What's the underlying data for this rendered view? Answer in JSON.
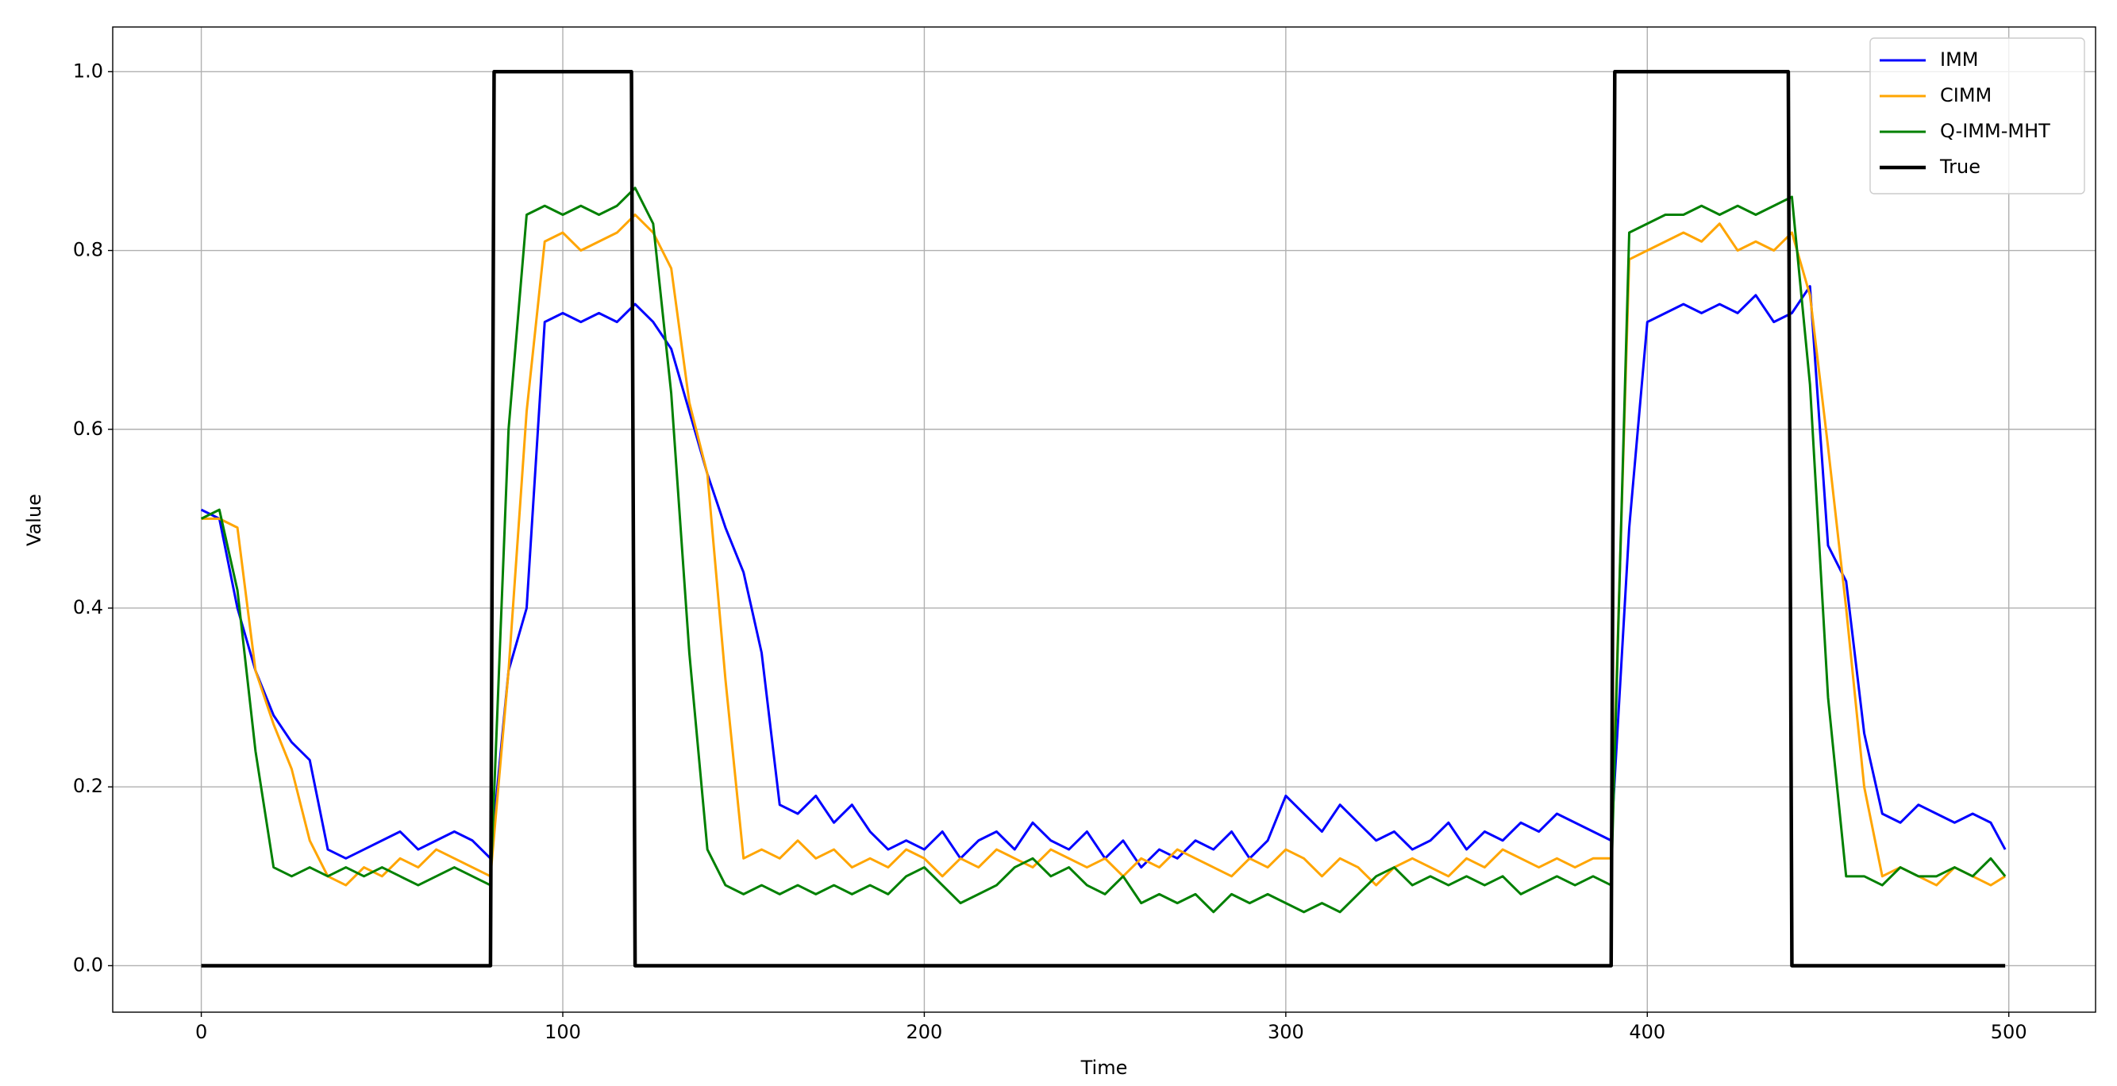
{
  "chart_data": {
    "type": "line",
    "xlabel": "Time",
    "ylabel": "Value",
    "xlim": [
      -24.5,
      524
    ],
    "ylim": [
      -0.052,
      1.05
    ],
    "xticks": [
      0,
      100,
      200,
      300,
      400,
      500
    ],
    "yticks": [
      {
        "value": 0,
        "label": "0.0"
      },
      {
        "value": 0.2,
        "label": "0.2"
      },
      {
        "value": 0.4,
        "label": "0.4"
      },
      {
        "value": 0.6,
        "label": "0.6"
      },
      {
        "value": 0.8,
        "label": "0.8"
      },
      {
        "value": 1,
        "label": "1.0"
      }
    ],
    "grid": true,
    "legend": "upper right",
    "x": [
      0,
      5,
      10,
      15,
      20,
      25,
      30,
      35,
      40,
      45,
      50,
      55,
      60,
      65,
      70,
      75,
      80,
      85,
      90,
      95,
      100,
      105,
      110,
      115,
      120,
      125,
      130,
      135,
      140,
      145,
      150,
      155,
      160,
      165,
      170,
      175,
      180,
      185,
      190,
      195,
      200,
      205,
      210,
      215,
      220,
      225,
      230,
      235,
      240,
      245,
      250,
      255,
      260,
      265,
      270,
      275,
      280,
      285,
      290,
      295,
      300,
      305,
      310,
      315,
      320,
      325,
      330,
      335,
      340,
      345,
      350,
      355,
      360,
      365,
      370,
      375,
      380,
      385,
      390,
      395,
      400,
      405,
      410,
      415,
      420,
      425,
      430,
      435,
      440,
      445,
      450,
      455,
      460,
      465,
      470,
      475,
      480,
      485,
      490,
      495,
      499
    ],
    "series": [
      {
        "name": "IMM",
        "color": "#0000ff",
        "values": [
          0.51,
          0.5,
          0.4,
          0.33,
          0.28,
          0.25,
          0.23,
          0.13,
          0.12,
          0.13,
          0.14,
          0.15,
          0.13,
          0.14,
          0.15,
          0.14,
          0.12,
          0.33,
          0.4,
          0.72,
          0.73,
          0.72,
          0.73,
          0.72,
          0.74,
          0.72,
          0.69,
          0.62,
          0.55,
          0.49,
          0.44,
          0.35,
          0.18,
          0.17,
          0.19,
          0.16,
          0.18,
          0.15,
          0.13,
          0.14,
          0.13,
          0.15,
          0.12,
          0.14,
          0.15,
          0.13,
          0.16,
          0.14,
          0.13,
          0.15,
          0.12,
          0.14,
          0.11,
          0.13,
          0.12,
          0.14,
          0.13,
          0.15,
          0.12,
          0.14,
          0.19,
          0.17,
          0.15,
          0.18,
          0.16,
          0.14,
          0.15,
          0.13,
          0.14,
          0.16,
          0.13,
          0.15,
          0.14,
          0.16,
          0.15,
          0.17,
          0.16,
          0.15,
          0.14,
          0.49,
          0.72,
          0.73,
          0.74,
          0.73,
          0.74,
          0.73,
          0.75,
          0.72,
          0.73,
          0.76,
          0.47,
          0.43,
          0.26,
          0.17,
          0.16,
          0.18,
          0.17,
          0.16,
          0.17,
          0.16,
          0.13
        ]
      },
      {
        "name": "CIMM",
        "color": "#ffa500",
        "values": [
          0.5,
          0.5,
          0.49,
          0.33,
          0.27,
          0.22,
          0.14,
          0.1,
          0.09,
          0.11,
          0.1,
          0.12,
          0.11,
          0.13,
          0.12,
          0.11,
          0.1,
          0.33,
          0.62,
          0.81,
          0.82,
          0.8,
          0.81,
          0.82,
          0.84,
          0.82,
          0.78,
          0.63,
          0.55,
          0.32,
          0.12,
          0.13,
          0.12,
          0.14,
          0.12,
          0.13,
          0.11,
          0.12,
          0.11,
          0.13,
          0.12,
          0.1,
          0.12,
          0.11,
          0.13,
          0.12,
          0.11,
          0.13,
          0.12,
          0.11,
          0.12,
          0.1,
          0.12,
          0.11,
          0.13,
          0.12,
          0.11,
          0.1,
          0.12,
          0.11,
          0.13,
          0.12,
          0.1,
          0.12,
          0.11,
          0.09,
          0.11,
          0.12,
          0.11,
          0.1,
          0.12,
          0.11,
          0.13,
          0.12,
          0.11,
          0.12,
          0.11,
          0.12,
          0.12,
          0.79,
          0.8,
          0.81,
          0.82,
          0.81,
          0.83,
          0.8,
          0.81,
          0.8,
          0.82,
          0.75,
          0.58,
          0.4,
          0.2,
          0.1,
          0.11,
          0.1,
          0.09,
          0.11,
          0.1,
          0.09,
          0.1
        ]
      },
      {
        "name": "Q-IMM-MHT",
        "color": "#008000",
        "values": [
          0.5,
          0.51,
          0.42,
          0.24,
          0.11,
          0.1,
          0.11,
          0.1,
          0.11,
          0.1,
          0.11,
          0.1,
          0.09,
          0.1,
          0.11,
          0.1,
          0.09,
          0.6,
          0.84,
          0.85,
          0.84,
          0.85,
          0.84,
          0.85,
          0.87,
          0.83,
          0.64,
          0.35,
          0.13,
          0.09,
          0.08,
          0.09,
          0.08,
          0.09,
          0.08,
          0.09,
          0.08,
          0.09,
          0.08,
          0.1,
          0.11,
          0.09,
          0.07,
          0.08,
          0.09,
          0.11,
          0.12,
          0.1,
          0.11,
          0.09,
          0.08,
          0.1,
          0.07,
          0.08,
          0.07,
          0.08,
          0.06,
          0.08,
          0.07,
          0.08,
          0.07,
          0.06,
          0.07,
          0.06,
          0.08,
          0.1,
          0.11,
          0.09,
          0.1,
          0.09,
          0.1,
          0.09,
          0.1,
          0.08,
          0.09,
          0.1,
          0.09,
          0.1,
          0.09,
          0.82,
          0.83,
          0.84,
          0.84,
          0.85,
          0.84,
          0.85,
          0.84,
          0.85,
          0.86,
          0.65,
          0.3,
          0.1,
          0.1,
          0.09,
          0.11,
          0.1,
          0.1,
          0.11,
          0.1,
          0.12,
          0.1
        ]
      },
      {
        "name": "True",
        "color": "#000000",
        "x": [
          0,
          80,
          81,
          119,
          120,
          390,
          391,
          439,
          440,
          499
        ],
        "values": [
          0,
          0,
          1,
          1,
          0,
          0,
          1,
          1,
          0,
          0
        ]
      }
    ]
  }
}
